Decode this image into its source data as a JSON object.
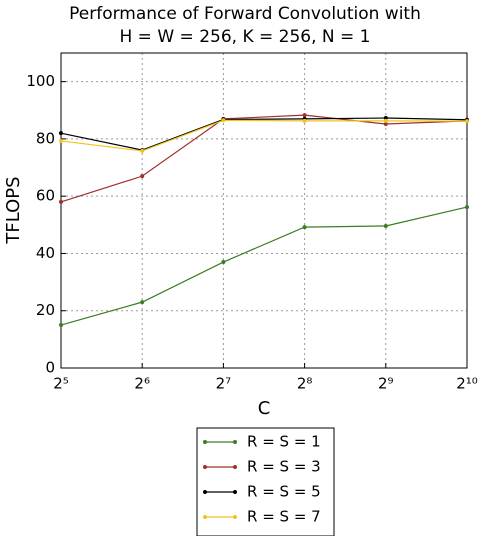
{
  "chart_data": {
    "type": "line",
    "title": [
      "Performance of Forward Convolution with",
      "H = W = 256, K = 256, N = 1"
    ],
    "xlabel": "C",
    "ylabel": "TFLOPS",
    "x": [
      32,
      64,
      128,
      256,
      512,
      1024
    ],
    "xscale": "log",
    "log_base": 2,
    "xlim": [
      32,
      1024
    ],
    "xticks": [
      {
        "value": 32,
        "label": "2⁵"
      },
      {
        "value": 64,
        "label": "2⁶"
      },
      {
        "value": 128,
        "label": "2⁷"
      },
      {
        "value": 256,
        "label": "2⁸"
      },
      {
        "value": 512,
        "label": "2⁹"
      },
      {
        "value": 1024,
        "label": "2¹⁰"
      }
    ],
    "ylim": [
      0,
      110
    ],
    "yticks": [
      0,
      20,
      40,
      60,
      80,
      100
    ],
    "grid": true,
    "legend": "below",
    "series": [
      {
        "name": "R = S = 1",
        "color": "#3a7d22",
        "values": [
          15.0,
          23.0,
          37.0,
          49.2,
          49.6,
          56.2
        ]
      },
      {
        "name": "R = S = 3",
        "color": "#a0302a",
        "values": [
          58.0,
          67.0,
          87.0,
          88.3,
          85.2,
          86.3
        ]
      },
      {
        "name": "R = S = 5",
        "color": "#000000",
        "values": [
          82.0,
          76.1,
          86.8,
          87.0,
          87.3,
          86.7
        ]
      },
      {
        "name": "R = S = 7",
        "color": "#f0c419",
        "values": [
          79.3,
          75.8,
          86.5,
          86.3,
          86.3,
          86.2
        ]
      }
    ]
  }
}
